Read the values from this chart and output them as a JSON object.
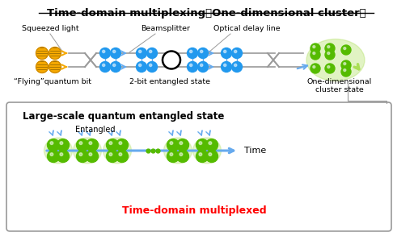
{
  "title": "Time-domain multiplexing（One-dimensional cluster）",
  "bg_color": "#ffffff",
  "top_labels": {
    "squeezed_light": "Squeezed light",
    "beamsplitter": "Beamsplitter",
    "optical_delay": "Optical delay line"
  },
  "bottom_labels": {
    "flying_qubit": "“Flying”quantum bit",
    "entangled_2bit": "2-bit entangled state",
    "cluster_1d": "One-dimensional\ncluster state"
  },
  "box_label": "Large-scale quantum entangled state",
  "entangled_label": "Entangled",
  "time_label": "Time",
  "multiplexed_label": "Time-domain multiplexed",
  "yellow_ball": "#F5A800",
  "blue_ball": "#2299EE",
  "green_ball": "#55BB00",
  "green_glow": "#AADE55",
  "line_color": "#999999",
  "blue_arrow": "#66AAEE",
  "red_text": "#FF0000",
  "box_border": "#999999"
}
